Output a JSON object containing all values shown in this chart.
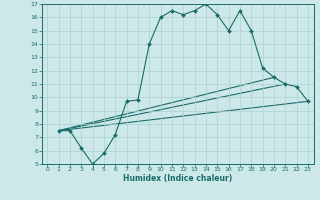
{
  "xlabel": "Humidex (Indice chaleur)",
  "bg_color": "#cde8e8",
  "line_color": "#1a6b6b",
  "grid_color": "#aed0d0",
  "xlim": [
    -0.5,
    23.5
  ],
  "ylim": [
    5,
    17
  ],
  "xticks": [
    0,
    1,
    2,
    3,
    4,
    5,
    6,
    7,
    8,
    9,
    10,
    11,
    12,
    13,
    14,
    15,
    16,
    17,
    18,
    19,
    20,
    21,
    22,
    23
  ],
  "yticks": [
    5,
    6,
    7,
    8,
    9,
    10,
    11,
    12,
    13,
    14,
    15,
    16,
    17
  ],
  "main_series": {
    "x": [
      1,
      2,
      3,
      4,
      5,
      6,
      7,
      8,
      9,
      10,
      11,
      12,
      13,
      14,
      15,
      16,
      17,
      18,
      19,
      20,
      21,
      22,
      23
    ],
    "y": [
      7.5,
      7.5,
      6.2,
      5.0,
      5.8,
      7.2,
      9.7,
      9.8,
      14.0,
      16.0,
      16.5,
      16.2,
      16.5,
      17.0,
      16.2,
      15.0,
      16.5,
      15.0,
      12.2,
      11.5,
      11.0,
      10.8,
      9.7
    ]
  },
  "ref_lines": [
    {
      "x": [
        1,
        23
      ],
      "y": [
        7.5,
        9.7
      ]
    },
    {
      "x": [
        1,
        21
      ],
      "y": [
        7.5,
        11.0
      ]
    },
    {
      "x": [
        1,
        20
      ],
      "y": [
        7.5,
        11.5
      ]
    }
  ]
}
